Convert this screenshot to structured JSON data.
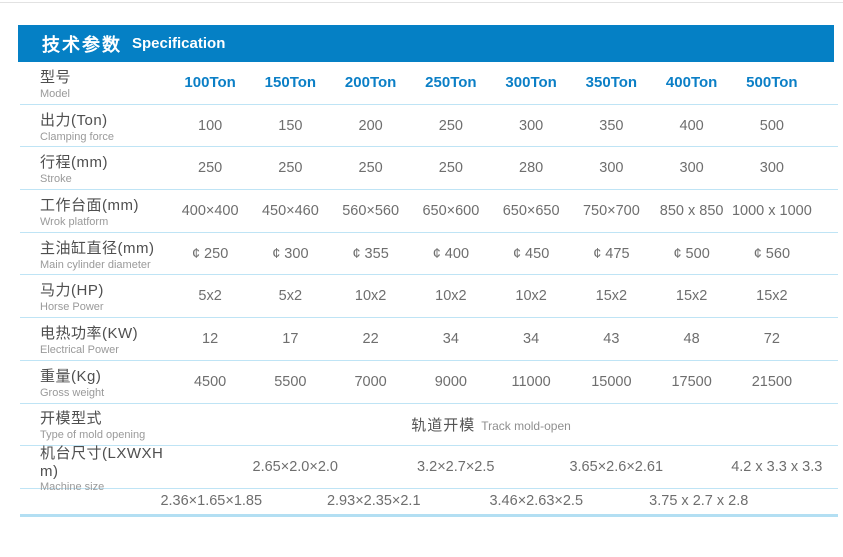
{
  "header": {
    "title_zh": "技术参数",
    "title_en": "Specification"
  },
  "model": {
    "zh": "型号",
    "en": "Model"
  },
  "columns": [
    "100Ton",
    "150Ton",
    "200Ton",
    "250Ton",
    "300Ton",
    "350Ton",
    "400Ton",
    "500Ton"
  ],
  "rows": [
    {
      "zh": "出力(Ton)",
      "en": "Clamping force",
      "values": [
        "100",
        "150",
        "200",
        "250",
        "300",
        "350",
        "400",
        "500"
      ]
    },
    {
      "zh": "行程(mm)",
      "en": "Stroke",
      "values": [
        "250",
        "250",
        "250",
        "250",
        "280",
        "300",
        "300",
        "300"
      ]
    },
    {
      "zh": "工作台面(mm)",
      "en": "Wrok platform",
      "values": [
        "400×400",
        "450×460",
        "560×560",
        "650×600",
        "650×650",
        "750×700",
        "850 x 850",
        "1000 x 1000"
      ]
    },
    {
      "zh": "主油缸直径(mm)",
      "en": "Main cylinder diameter",
      "values": [
        "¢ 250",
        "¢ 300",
        "¢ 355",
        "¢ 400",
        "¢ 450",
        "¢ 475",
        "¢ 500",
        "¢ 560"
      ]
    },
    {
      "zh": "马力(HP)",
      "en": "Horse Power",
      "values": [
        "5x2",
        "5x2",
        "10x2",
        "10x2",
        "10x2",
        "15x2",
        "15x2",
        "15x2"
      ]
    },
    {
      "zh": "电热功率(KW)",
      "en": "Electrical Power",
      "values": [
        "12",
        "17",
        "22",
        "34",
        "34",
        "43",
        "48",
        "72"
      ]
    },
    {
      "zh": "重量(Kg)",
      "en": "Gross weight",
      "values": [
        "4500",
        "5500",
        "7000",
        "9000",
        "11000",
        "15000",
        "17500",
        "21500"
      ]
    }
  ],
  "mold_row": {
    "zh": "开模型式",
    "en": "Type of mold opening",
    "value_zh": "轨道开模",
    "value_en": "Track mold-open"
  },
  "machine_row": {
    "zh": "机台尺寸(LXWXH m)",
    "en": "Machine size",
    "values": [
      "2.65×2.0×2.0",
      "3.2×2.7×2.5",
      "3.65×2.6×2.61",
      "4.2 x 3.3 x 3.3"
    ]
  },
  "machine_row_2": {
    "values": [
      "2.36×1.65×1.85",
      "2.93×2.35×2.1",
      "3.46×2.63×2.5",
      "3.75 x 2.7 x 2.8"
    ]
  },
  "colors": {
    "accent_blue": "#0580c5",
    "divider_blue": "#bfe4f5"
  }
}
